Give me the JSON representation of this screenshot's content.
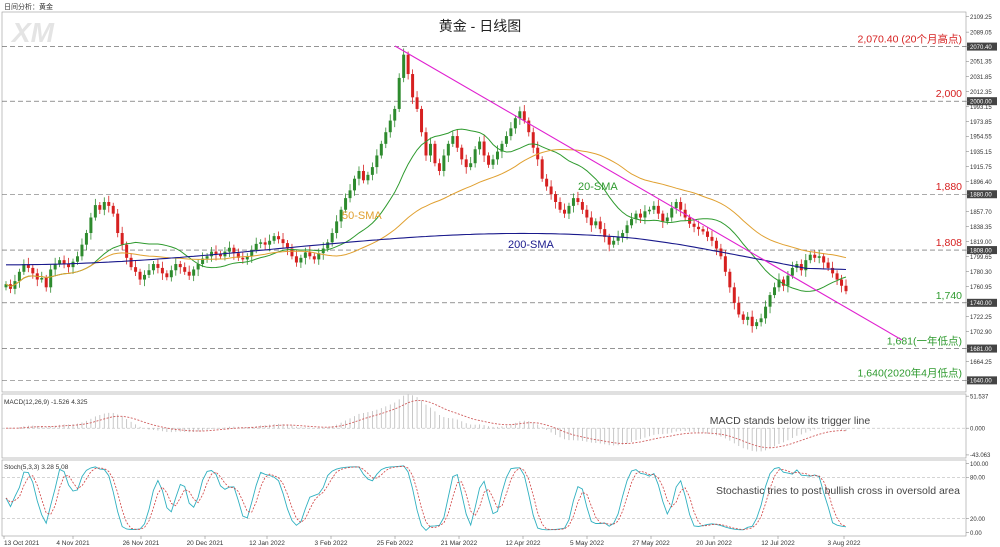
{
  "header": {
    "top_label": "日间分析：黄金",
    "logo_text": "XM",
    "title": "黄金 - 日线图"
  },
  "colors": {
    "candle_up": "#2e8b2e",
    "candle_down": "#d62020",
    "sma20": "#2e9a2e",
    "sma50": "#e0a030",
    "sma200": "#1a1a8c",
    "trendline": "#e020d0",
    "level_text": "#d62020",
    "support_text": "#2e9a2e",
    "macd_line": "#d06060",
    "stoch_k": "#30b0c0",
    "stoch_d": "#d04040"
  },
  "chart_data": [
    {
      "type": "candlestick",
      "title": "黄金 - 日线图",
      "x_ticks": [
        "13 Oct 2021",
        "4 Nov 2021",
        "26 Nov 2021",
        "20 Dec 2021",
        "12 Jan 2022",
        "3 Feb 2022",
        "25 Feb 2022",
        "21 Mar 2022",
        "12 Apr 2022",
        "5 May 2022",
        "27 May 2022",
        "20 Jun 2022",
        "12 Jul 2022",
        "3 Aug 2022"
      ],
      "y_ticks": [
        "2109.25",
        "2089.05",
        "2070.40",
        "2051.35",
        "2031.85",
        "2012.35",
        "2000.00",
        "1993.15",
        "1973.85",
        "1954.55",
        "1935.15",
        "1915.75",
        "1896.40",
        "1880.00",
        "1857.70",
        "1838.35",
        "1819.00",
        "1808.00",
        "1799.65",
        "1780.30",
        "1760.95",
        "1740.00",
        "1722.25",
        "1702.90",
        "1681.00",
        "1664.25",
        "1640.00"
      ],
      "ylim": [
        1625,
        2115
      ],
      "levels": [
        {
          "value": 2070.4,
          "label": "2,070.40 (20个月高点)",
          "color": "#d62020"
        },
        {
          "value": 2000,
          "label": "2,000",
          "color": "#d62020"
        },
        {
          "value": 1880,
          "label": "1,880",
          "color": "#d62020"
        },
        {
          "value": 1808,
          "label": "1,808",
          "color": "#d62020"
        },
        {
          "value": 1740,
          "label": "1,740",
          "color": "#2e9a2e"
        },
        {
          "value": 1681,
          "label": "1,681(一年低点)",
          "color": "#2e9a2e"
        },
        {
          "value": 1640,
          "label": "1,640(2020年4月低点)",
          "color": "#2e9a2e"
        }
      ],
      "series": [
        {
          "name": "20-SMA",
          "color": "#2e9a2e"
        },
        {
          "name": "50-SMA",
          "color": "#e0a030"
        },
        {
          "name": "200-SMA",
          "color": "#1a1a8c"
        }
      ],
      "closes": [
        1764,
        1758,
        1768,
        1780,
        1790,
        1785,
        1778,
        1770,
        1772,
        1760,
        1783,
        1790,
        1795,
        1790,
        1786,
        1793,
        1800,
        1815,
        1830,
        1850,
        1866,
        1860,
        1870,
        1865,
        1855,
        1830,
        1815,
        1798,
        1786,
        1780,
        1770,
        1776,
        1782,
        1790,
        1785,
        1778,
        1773,
        1782,
        1790,
        1786,
        1780,
        1775,
        1783,
        1790,
        1797,
        1800,
        1806,
        1803,
        1800,
        1806,
        1811,
        1804,
        1798,
        1796,
        1800,
        1808,
        1816,
        1818,
        1815,
        1820,
        1826,
        1822,
        1817,
        1810,
        1800,
        1792,
        1798,
        1805,
        1800,
        1796,
        1804,
        1810,
        1818,
        1830,
        1845,
        1860,
        1875,
        1885,
        1900,
        1910,
        1898,
        1905,
        1915,
        1930,
        1945,
        1960,
        1975,
        1990,
        2030,
        2060,
        2035,
        2005,
        1990,
        1960,
        1930,
        1945,
        1920,
        1910,
        1930,
        1945,
        1955,
        1940,
        1925,
        1915,
        1920,
        1938,
        1948,
        1930,
        1918,
        1925,
        1935,
        1945,
        1955,
        1965,
        1978,
        1987,
        1975,
        1960,
        1940,
        1925,
        1900,
        1890,
        1880,
        1870,
        1860,
        1855,
        1865,
        1875,
        1870,
        1860,
        1850,
        1840,
        1845,
        1835,
        1825,
        1815,
        1820,
        1825,
        1830,
        1840,
        1848,
        1855,
        1850,
        1858,
        1860,
        1865,
        1855,
        1845,
        1850,
        1862,
        1870,
        1860,
        1850,
        1842,
        1838,
        1835,
        1832,
        1825,
        1820,
        1810,
        1800,
        1780,
        1760,
        1740,
        1725,
        1718,
        1722,
        1710,
        1715,
        1720,
        1735,
        1750,
        1760,
        1770,
        1762,
        1775,
        1785,
        1790,
        1782,
        1795,
        1802,
        1798,
        1800,
        1792,
        1785,
        1778,
        1770,
        1762,
        1755
      ]
    },
    {
      "type": "line",
      "title": "MACD(12,26,9) -1.526 4.325",
      "y_ticks": [
        "51.537",
        "0.000",
        "-43.063"
      ],
      "ylim": [
        -48,
        55
      ],
      "annotation": "MACD stands below its trigger line"
    },
    {
      "type": "line",
      "title": "Stoch(5,3,3) 3.28 5.08",
      "y_ticks": [
        "100.00",
        "80.00",
        "20.00",
        "0.00"
      ],
      "ylim": [
        -5,
        105
      ],
      "annotation": "Stochastic tries to post bullish cross in oversold area"
    }
  ]
}
